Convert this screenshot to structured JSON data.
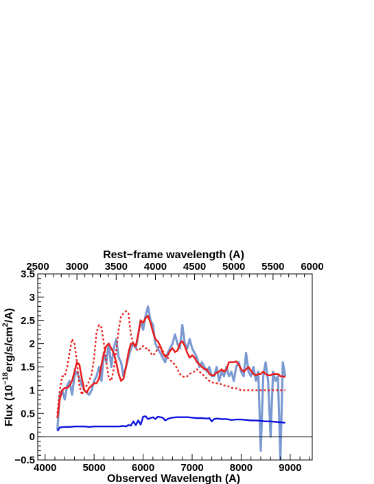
{
  "chart_data": {
    "type": "line",
    "top_axis_title": "Rest−frame wavelength (A)",
    "xlabel": "Observed Wavelength (A)",
    "ylabel_main": "Flux (10",
    "ylabel_sup1": "−18",
    "ylabel_mid": "erg/s/cm",
    "ylabel_sup2": "2",
    "ylabel_end": "/A)",
    "xlim": [
      3850,
      9450
    ],
    "ylim": [
      -0.5,
      3.5
    ],
    "top_xlim": [
      2500,
      6000
    ],
    "x_ticks": [
      "4000",
      "5000",
      "6000",
      "7000",
      "8000",
      "9000"
    ],
    "y_ticks": [
      "−0.5",
      "0",
      "0.5",
      "1",
      "1.5",
      "2",
      "2.5",
      "3",
      "3.5"
    ],
    "top_ticks": [
      "2500",
      "3000",
      "3500",
      "4000",
      "4500",
      "5000",
      "5500",
      "6000"
    ],
    "colors": {
      "observed": "#7b9ad2",
      "model": "#e8201e",
      "host": "#0b10e0",
      "zero_line": "#000000"
    },
    "series": [
      {
        "x": [
          4250,
          4300,
          4350,
          4400,
          4450,
          4500,
          4550,
          4600,
          4650,
          4700,
          4750,
          4800,
          4850,
          4900,
          4950,
          5000,
          5050,
          5100,
          5150,
          5200,
          5250,
          5300,
          5350,
          5400,
          5450,
          5500,
          5550,
          5600,
          5650,
          5700,
          5750,
          5800,
          5850,
          5900,
          5950,
          6000,
          6050,
          6100,
          6150,
          6200,
          6250,
          6300,
          6350,
          6400,
          6450,
          6500,
          6550,
          6600,
          6650,
          6700,
          6750,
          6800,
          6850,
          6900,
          6950,
          7000,
          7050,
          7100,
          7150,
          7200,
          7250,
          7300,
          7350,
          7400,
          7450,
          7500,
          7550,
          7600,
          7650,
          7700,
          7750,
          7800,
          7850,
          7900,
          7950,
          8000,
          8050,
          8100,
          8150,
          8200,
          8250,
          8300,
          8350,
          8400,
          8450,
          8500,
          8550,
          8600,
          8650,
          8700,
          8750,
          8800,
          8850,
          8900
        ],
        "values": [
          0.15,
          0.9,
          1.0,
          0.8,
          1.1,
          1.2,
          0.9,
          1.3,
          1.4,
          1.25,
          1.1,
          1.0,
          0.95,
          0.9,
          1.0,
          1.2,
          1.3,
          1.5,
          1.2,
          1.8,
          1.6,
          2.0,
          1.5,
          1.9,
          2.1,
          1.7,
          1.6,
          1.3,
          1.5,
          1.7,
          1.9,
          2.0,
          1.9,
          2.2,
          2.5,
          2.3,
          2.6,
          2.8,
          2.5,
          2.4,
          2.0,
          1.9,
          1.8,
          1.7,
          1.6,
          1.8,
          1.9,
          2.0,
          2.2,
          2.0,
          1.9,
          2.4,
          2.0,
          1.9,
          2.1,
          1.9,
          1.8,
          1.7,
          1.5,
          1.6,
          1.5,
          1.4,
          1.5,
          1.3,
          1.3,
          1.5,
          1.2,
          1.4,
          1.3,
          1.5,
          1.3,
          1.4,
          1.2,
          1.5,
          1.6,
          1.4,
          1.3,
          1.8,
          1.4,
          1.3,
          1.5,
          1.2,
          1.4,
          -0.3,
          1.3,
          1.6,
          1.2,
          0.0,
          1.4,
          1.2,
          1.3,
          -0.5,
          1.6,
          1.3
        ]
      },
      {
        "x": [
          4250,
          4300,
          4350,
          4400,
          4450,
          4500,
          4550,
          4600,
          4650,
          4700,
          4750,
          4800,
          4850,
          4900,
          4950,
          5000,
          5050,
          5100,
          5150,
          5200,
          5250,
          5300,
          5350,
          5400,
          5450,
          5500,
          5550,
          5600,
          5650,
          5700,
          5750,
          5800,
          5850,
          5900,
          5950,
          6000,
          6050,
          6100,
          6150,
          6200,
          6250,
          6300,
          6350,
          6400,
          6450,
          6500,
          6550,
          6600,
          6650,
          6700,
          6750,
          6800,
          6850,
          6900,
          6950,
          7000,
          7050,
          7100,
          7150,
          7200,
          7250,
          7300,
          7350,
          7400,
          7450,
          7500,
          7550,
          7600,
          7650,
          7700,
          7750,
          7800,
          7850,
          7900,
          7950,
          8000,
          8050,
          8100,
          8150,
          8200,
          8250,
          8300,
          8350,
          8400,
          8450,
          8500,
          8550,
          8600,
          8650,
          8700,
          8750,
          8800,
          8850,
          8900
        ],
        "values": [
          0.4,
          0.8,
          1.0,
          1.05,
          1.05,
          1.1,
          1.2,
          1.4,
          1.6,
          1.55,
          1.25,
          1.0,
          0.95,
          1.05,
          1.1,
          1.15,
          1.15,
          1.25,
          1.55,
          1.8,
          1.95,
          2.0,
          1.9,
          1.8,
          1.6,
          1.35,
          1.2,
          1.25,
          1.5,
          1.8,
          2.0,
          2.0,
          1.95,
          2.2,
          2.5,
          2.45,
          2.55,
          2.6,
          2.45,
          2.25,
          2.1,
          2.05,
          1.95,
          1.8,
          1.72,
          1.75,
          1.85,
          1.9,
          1.82,
          1.85,
          2.0,
          2.05,
          1.95,
          1.8,
          1.7,
          1.75,
          1.7,
          1.6,
          1.55,
          1.5,
          1.45,
          1.45,
          1.35,
          1.32,
          1.32,
          1.38,
          1.4,
          1.45,
          1.4,
          1.45,
          1.6,
          1.6,
          1.6,
          1.62,
          1.55,
          1.45,
          1.4,
          1.45,
          1.5,
          1.42,
          1.35,
          1.32,
          1.35,
          1.35,
          1.4,
          1.35,
          1.32,
          1.32,
          1.35,
          1.35,
          1.35,
          1.3,
          1.3,
          1.28
        ]
      },
      {
        "x": [
          4250,
          4300,
          4350,
          4400,
          4450,
          4500,
          4550,
          4600,
          4650,
          4700,
          4750,
          4800,
          4850,
          4900,
          4950,
          5000,
          5050,
          5100,
          5150,
          5200,
          5250,
          5300,
          5350,
          5400,
          5450,
          5500,
          5550,
          5600,
          5650,
          5700,
          5750,
          5800,
          5850,
          5900,
          5950,
          6000,
          6050,
          6100,
          6150,
          6200,
          6250,
          6300,
          6350,
          6400,
          6450,
          6500,
          6550,
          6600,
          6650,
          6700,
          6750,
          6800,
          6850,
          6900,
          6950,
          7000,
          7050,
          7100,
          7150,
          7200,
          7250,
          7300,
          7350,
          7400,
          7450,
          7500,
          7550,
          7600,
          7650,
          7700,
          7750,
          7800,
          7850,
          7900,
          7950,
          8000,
          8050,
          8100,
          8150,
          8200,
          8250,
          8300,
          8350,
          8400,
          8450,
          8500,
          8550,
          8600,
          8650,
          8700,
          8750,
          8800,
          8850,
          8900
        ],
        "values": [
          0.5,
          1.0,
          1.3,
          1.3,
          1.5,
          1.8,
          2.1,
          2.0,
          1.6,
          1.1,
          0.9,
          1.05,
          1.1,
          1.2,
          1.35,
          1.7,
          2.25,
          2.4,
          2.35,
          2.0,
          1.6,
          1.25,
          1.2,
          1.45,
          1.85,
          2.3,
          2.6,
          2.65,
          2.7,
          2.65,
          2.2,
          2.0,
          1.9,
          1.85,
          1.9,
          1.95,
          1.9,
          1.9,
          1.8,
          1.75,
          1.8,
          1.9,
          1.95,
          1.85,
          1.75,
          1.7,
          1.65,
          1.6,
          1.55,
          1.45,
          1.35,
          1.3,
          1.28,
          1.3,
          1.35,
          1.38,
          1.4,
          1.45,
          1.4,
          1.35,
          1.3,
          1.25,
          1.2,
          1.18,
          1.15,
          1.15,
          1.15,
          1.12,
          1.1,
          1.1,
          1.08,
          1.05,
          1.05,
          1.04,
          1.02,
          1.0,
          1.0,
          1.0,
          1.0,
          1.0,
          1.0,
          1.0,
          1.0,
          1.0,
          1.0,
          1.0,
          1.0,
          1.0,
          1.0,
          1.0,
          1.0,
          1.0,
          1.0,
          1.0
        ]
      },
      {
        "x": [
          4250,
          4300,
          4400,
          4500,
          4600,
          4700,
          4800,
          4900,
          5000,
          5100,
          5200,
          5300,
          5400,
          5500,
          5600,
          5650,
          5700,
          5750,
          5800,
          5850,
          5900,
          5950,
          6000,
          6050,
          6100,
          6150,
          6200,
          6250,
          6300,
          6350,
          6400,
          6450,
          6500,
          6550,
          6600,
          6700,
          6800,
          6900,
          7000,
          7100,
          7200,
          7300,
          7350,
          7400,
          7450,
          7500,
          7600,
          7700,
          7800,
          7900,
          8000,
          8100,
          8200,
          8300,
          8400,
          8500,
          8600,
          8700,
          8800,
          8900
        ],
        "values": [
          0.12,
          0.2,
          0.21,
          0.21,
          0.22,
          0.22,
          0.22,
          0.21,
          0.22,
          0.22,
          0.22,
          0.22,
          0.22,
          0.22,
          0.23,
          0.22,
          0.25,
          0.24,
          0.33,
          0.25,
          0.35,
          0.26,
          0.43,
          0.44,
          0.38,
          0.4,
          0.42,
          0.38,
          0.43,
          0.42,
          0.41,
          0.35,
          0.38,
          0.4,
          0.41,
          0.42,
          0.42,
          0.42,
          0.41,
          0.4,
          0.4,
          0.39,
          0.4,
          0.33,
          0.38,
          0.39,
          0.38,
          0.38,
          0.36,
          0.37,
          0.37,
          0.36,
          0.35,
          0.35,
          0.34,
          0.33,
          0.33,
          0.32,
          0.31,
          0.3
        ]
      }
    ]
  }
}
